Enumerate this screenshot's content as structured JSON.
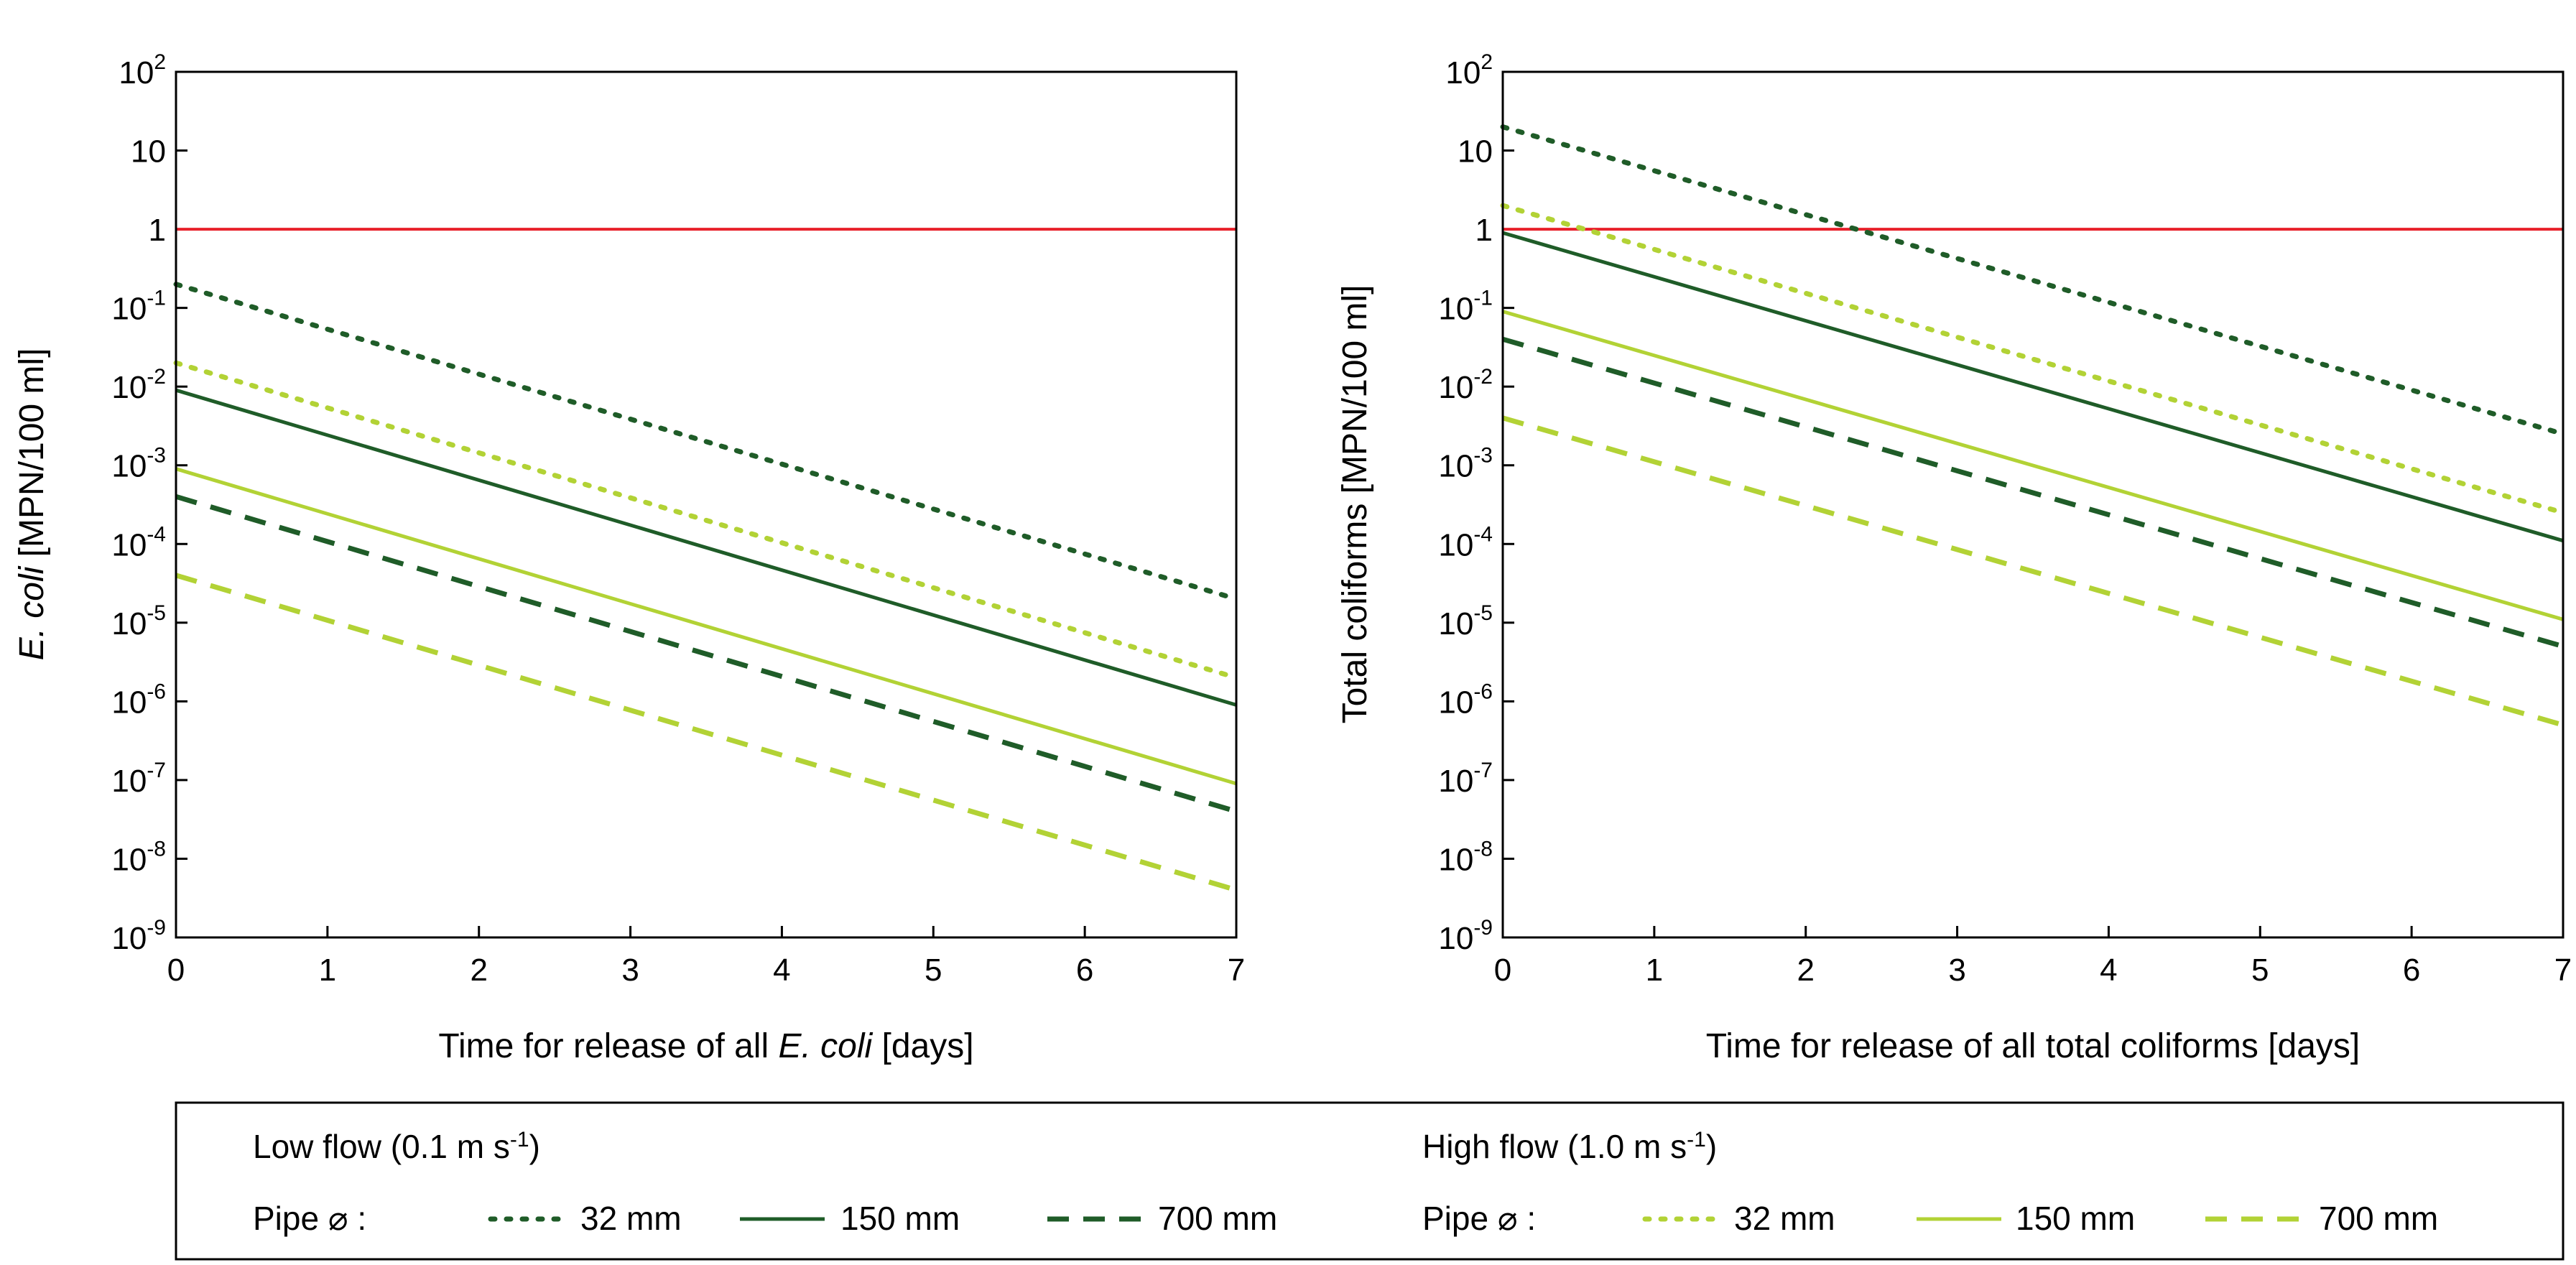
{
  "colors": {
    "low_flow": "#1f5c28",
    "high_flow": "#b2d235",
    "threshold": "#e8202a",
    "frame": "#000000"
  },
  "chart_data": [
    {
      "id": "ecoli",
      "type": "line",
      "title": "",
      "ylabel_italic": "E. coli",
      "ylabel_rest": " [MPN/100 ml]",
      "xlabel_prefix": "Time for release of all ",
      "xlabel_italic": "E. coli",
      "xlabel_suffix": " [days]",
      "xlim": [
        0,
        7
      ],
      "ylim_log10": [
        -9,
        2
      ],
      "y_scale": "log",
      "x_ticks": [
        "0",
        "1",
        "2",
        "3",
        "4",
        "5",
        "6",
        "7"
      ],
      "y_ticks": [
        {
          "exp": 2,
          "base": "10",
          "sup": "2"
        },
        {
          "exp": 1,
          "base": "10",
          "sup": ""
        },
        {
          "exp": 0,
          "base": "1",
          "sup": ""
        },
        {
          "exp": -1,
          "base": "10",
          "sup": "-1"
        },
        {
          "exp": -2,
          "base": "10",
          "sup": "-2"
        },
        {
          "exp": -3,
          "base": "10",
          "sup": "-3"
        },
        {
          "exp": -4,
          "base": "10",
          "sup": "-4"
        },
        {
          "exp": -5,
          "base": "10",
          "sup": "-5"
        },
        {
          "exp": -6,
          "base": "10",
          "sup": "-6"
        },
        {
          "exp": -7,
          "base": "10",
          "sup": "-7"
        },
        {
          "exp": -8,
          "base": "10",
          "sup": "-8"
        },
        {
          "exp": -9,
          "base": "10",
          "sup": "-9"
        }
      ],
      "threshold": {
        "name": "limit",
        "value": 1,
        "color_key": "threshold"
      },
      "series": [
        {
          "name": "Low flow 32 mm",
          "flow": "low",
          "dash": "dotted",
          "x": [
            0,
            7
          ],
          "y": [
            0.2,
            2e-05
          ]
        },
        {
          "name": "Low flow 150 mm",
          "flow": "low",
          "dash": "solid",
          "x": [
            0,
            7
          ],
          "y": [
            0.009,
            9e-07
          ]
        },
        {
          "name": "Low flow 700 mm",
          "flow": "low",
          "dash": "dashed",
          "x": [
            0,
            7
          ],
          "y": [
            0.0004,
            4e-08
          ]
        },
        {
          "name": "High flow 32 mm",
          "flow": "high",
          "dash": "dotted",
          "x": [
            0,
            7
          ],
          "y": [
            0.02,
            2e-06
          ]
        },
        {
          "name": "High flow 150 mm",
          "flow": "high",
          "dash": "solid",
          "x": [
            0,
            7
          ],
          "y": [
            0.0009,
            9e-08
          ]
        },
        {
          "name": "High flow 700 mm",
          "flow": "high",
          "dash": "dashed",
          "x": [
            0,
            7
          ],
          "y": [
            4e-05,
            4e-09
          ]
        }
      ]
    },
    {
      "id": "coliforms",
      "type": "line",
      "title": "",
      "ylabel_italic": "",
      "ylabel_rest": "Total coliforms [MPN/100 ml]",
      "xlabel_prefix": "Time for release of all total coliforms [days]",
      "xlabel_italic": "",
      "xlabel_suffix": "",
      "xlim": [
        0,
        7
      ],
      "ylim_log10": [
        -9,
        2
      ],
      "y_scale": "log",
      "x_ticks": [
        "0",
        "1",
        "2",
        "3",
        "4",
        "5",
        "6",
        "7"
      ],
      "y_ticks": [
        {
          "exp": 2,
          "base": "10",
          "sup": "2"
        },
        {
          "exp": 1,
          "base": "10",
          "sup": ""
        },
        {
          "exp": 0,
          "base": "1",
          "sup": ""
        },
        {
          "exp": -1,
          "base": "10",
          "sup": "-1"
        },
        {
          "exp": -2,
          "base": "10",
          "sup": "-2"
        },
        {
          "exp": -3,
          "base": "10",
          "sup": "-3"
        },
        {
          "exp": -4,
          "base": "10",
          "sup": "-4"
        },
        {
          "exp": -5,
          "base": "10",
          "sup": "-5"
        },
        {
          "exp": -6,
          "base": "10",
          "sup": "-6"
        },
        {
          "exp": -7,
          "base": "10",
          "sup": "-7"
        },
        {
          "exp": -8,
          "base": "10",
          "sup": "-8"
        },
        {
          "exp": -9,
          "base": "10",
          "sup": "-9"
        }
      ],
      "threshold": {
        "name": "limit",
        "value": 1,
        "color_key": "threshold"
      },
      "series": [
        {
          "name": "Low flow 32 mm",
          "flow": "low",
          "dash": "dotted",
          "x": [
            0,
            7
          ],
          "y": [
            20,
            0.0025
          ]
        },
        {
          "name": "Low flow 150 mm",
          "flow": "low",
          "dash": "solid",
          "x": [
            0,
            7
          ],
          "y": [
            0.9,
            0.00011
          ]
        },
        {
          "name": "Low flow 700 mm",
          "flow": "low",
          "dash": "dashed",
          "x": [
            0,
            7
          ],
          "y": [
            0.04,
            5e-06
          ]
        },
        {
          "name": "High flow 32 mm",
          "flow": "high",
          "dash": "dotted",
          "x": [
            0,
            7
          ],
          "y": [
            2,
            0.00025
          ]
        },
        {
          "name": "High flow 150 mm",
          "flow": "high",
          "dash": "solid",
          "x": [
            0,
            7
          ],
          "y": [
            0.09,
            1.1e-05
          ]
        },
        {
          "name": "High flow 700 mm",
          "flow": "high",
          "dash": "dashed",
          "x": [
            0,
            7
          ],
          "y": [
            0.004,
            5e-07
          ]
        }
      ]
    }
  ],
  "legend": {
    "low_heading_prefix": "Low flow (0.1 m s",
    "low_heading_sup": "-1",
    "low_heading_suffix": ")",
    "high_heading_prefix": "High flow (1.0 m s",
    "high_heading_sup": "-1",
    "high_heading_suffix": ")",
    "pipe_label": "Pipe ⌀ :",
    "items_low": [
      {
        "label": "32 mm",
        "dash": "dotted"
      },
      {
        "label": "150 mm",
        "dash": "solid"
      },
      {
        "label": "700 mm",
        "dash": "dashed"
      }
    ],
    "items_high": [
      {
        "label": "32 mm",
        "dash": "dotted"
      },
      {
        "label": "150 mm",
        "dash": "solid"
      },
      {
        "label": "700 mm",
        "dash": "dashed"
      }
    ]
  }
}
